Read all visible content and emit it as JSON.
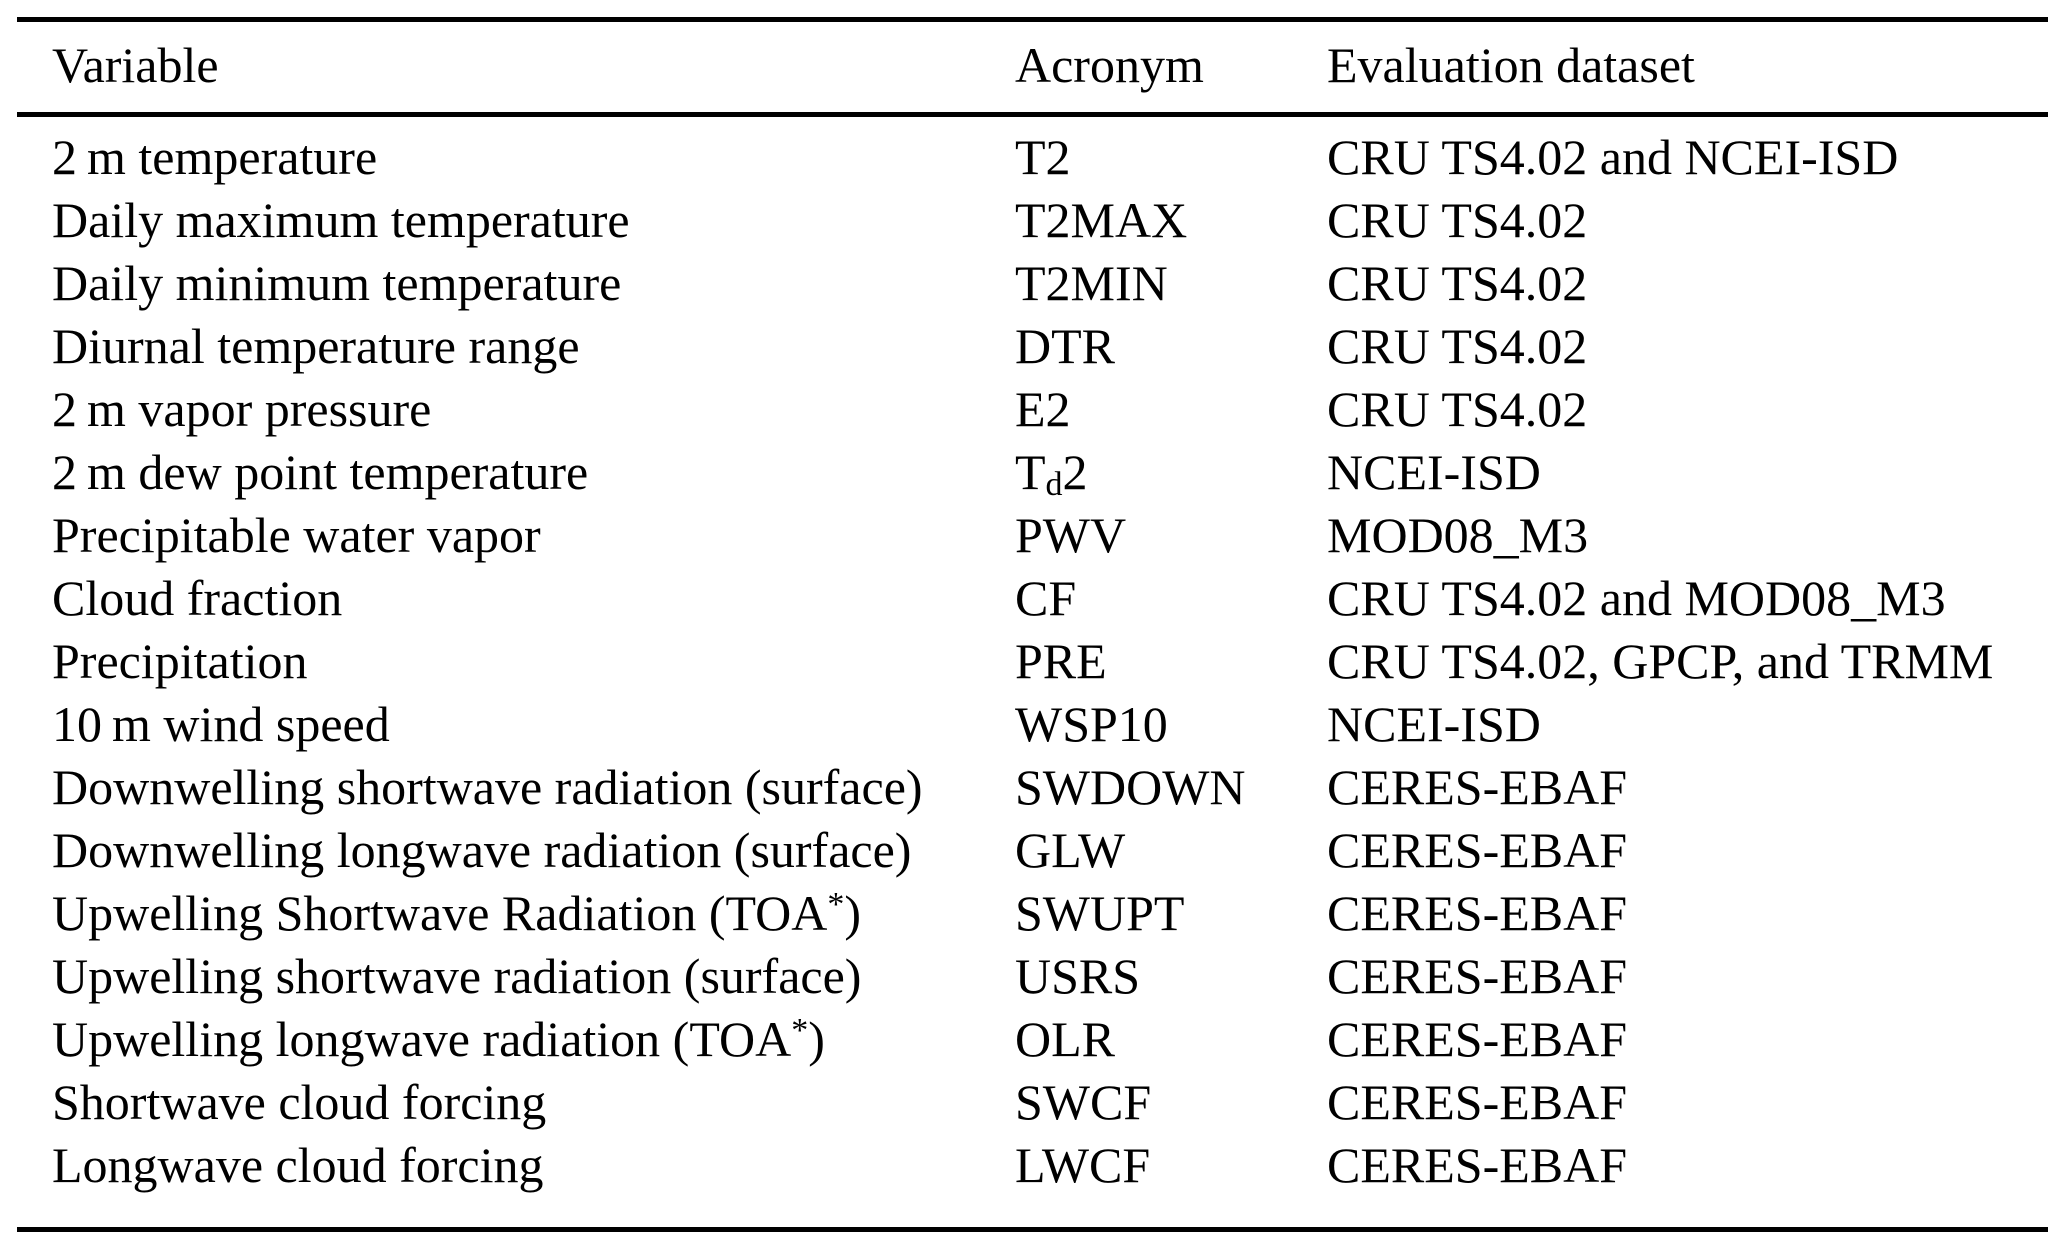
{
  "page": {
    "background_color": "#ffffff",
    "text_color": "#000000",
    "rule_color": "#000000"
  },
  "table": {
    "columns": [
      {
        "id": "variable",
        "label": "Variable"
      },
      {
        "id": "acronym",
        "label": "Acronym"
      },
      {
        "id": "dataset",
        "label": "Evaluation dataset"
      }
    ],
    "rows": [
      {
        "variable": "2 m temperature",
        "acronym": "T2",
        "dataset": "CRU TS4.02 and NCEI-ISD"
      },
      {
        "variable": "Daily maximum temperature",
        "acronym": "T2MAX",
        "dataset": "CRU TS4.02"
      },
      {
        "variable": "Daily minimum temperature",
        "acronym": "T2MIN",
        "dataset": "CRU TS4.02"
      },
      {
        "variable": "Diurnal temperature range",
        "acronym": "DTR",
        "dataset": "CRU TS4.02"
      },
      {
        "variable": "2 m vapor pressure",
        "acronym": "E2",
        "dataset": "CRU TS4.02"
      },
      {
        "variable": "2 m dew point temperature",
        "acronym": "T~d~2",
        "dataset": "NCEI-ISD"
      },
      {
        "variable": "Precipitable water vapor",
        "acronym": "PWV",
        "dataset": "MOD08_M3"
      },
      {
        "variable": "Cloud fraction",
        "acronym": "CF",
        "dataset": "CRU TS4.02 and MOD08_M3"
      },
      {
        "variable": "Precipitation",
        "acronym": "PRE",
        "dataset": "CRU TS4.02, GPCP, and TRMM"
      },
      {
        "variable": "10 m wind speed",
        "acronym": "WSP10",
        "dataset": "NCEI-ISD"
      },
      {
        "variable": "Downwelling shortwave radiation (surface)",
        "acronym": "SWDOWN",
        "dataset": "CERES-EBAF"
      },
      {
        "variable": "Downwelling longwave radiation (surface)",
        "acronym": "GLW",
        "dataset": "CERES-EBAF"
      },
      {
        "variable": "Upwelling Shortwave Radiation (TOA^*^)",
        "acronym": "SWUPT",
        "dataset": "CERES-EBAF"
      },
      {
        "variable": "Upwelling shortwave radiation (surface)",
        "acronym": "USRS",
        "dataset": "CERES-EBAF"
      },
      {
        "variable": "Upwelling longwave radiation (TOA^*^)",
        "acronym": "OLR",
        "dataset": "CERES-EBAF"
      },
      {
        "variable": "Shortwave cloud forcing",
        "acronym": "SWCF",
        "dataset": "CERES-EBAF"
      },
      {
        "variable": "Longwave cloud forcing",
        "acronym": "LWCF",
        "dataset": "CERES-EBAF"
      }
    ]
  }
}
